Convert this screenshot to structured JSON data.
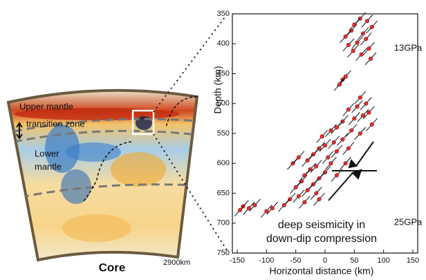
{
  "chart_data": {
    "type": "scatter",
    "xlabel": "Horizontal distance (km)",
    "ylabel": "Depth (km)",
    "x": [
      60,
      72,
      50,
      80,
      45,
      65,
      35,
      70,
      55,
      40,
      75,
      48,
      62,
      78,
      30,
      25,
      35,
      60,
      70,
      55,
      75,
      40,
      65,
      50,
      30,
      80,
      20,
      45,
      10,
      60,
      -5,
      30,
      15,
      0,
      40,
      -10,
      20,
      -20,
      5,
      -30,
      10,
      -15,
      -25,
      0,
      -35,
      -10,
      -40,
      -20,
      -50,
      -30,
      -15,
      -45,
      -60,
      -35,
      -70,
      -90,
      -100,
      -140,
      -130,
      -145,
      -120,
      -55,
      -45,
      -10,
      20,
      35
    ],
    "y": [
      358,
      362,
      368,
      372,
      378,
      383,
      388,
      392,
      398,
      402,
      408,
      412,
      418,
      425,
      460,
      468,
      455,
      490,
      500,
      505,
      515,
      510,
      520,
      525,
      530,
      535,
      540,
      545,
      545,
      550,
      555,
      560,
      565,
      570,
      575,
      575,
      580,
      585,
      590,
      595,
      600,
      605,
      610,
      615,
      620,
      625,
      630,
      635,
      640,
      645,
      650,
      655,
      660,
      665,
      670,
      675,
      680,
      672,
      675,
      678,
      670,
      600,
      590,
      660,
      620,
      600
    ],
    "color": "#e03030",
    "xlim": [
      -150,
      150
    ],
    "xticks": [
      -150,
      -100,
      -50,
      0,
      50,
      100,
      150
    ],
    "ylim": [
      750,
      350
    ],
    "yticks": [
      350,
      400,
      450,
      500,
      550,
      600,
      650,
      700,
      750
    ],
    "annotations": [
      "13GPa",
      "25GPa",
      "deep seismicity in",
      "down-dip compression"
    ]
  },
  "cross_section": {
    "labels": [
      "Upper mantle",
      "transition zone",
      "Lower",
      "mantle",
      "Core",
      "2900km"
    ]
  }
}
